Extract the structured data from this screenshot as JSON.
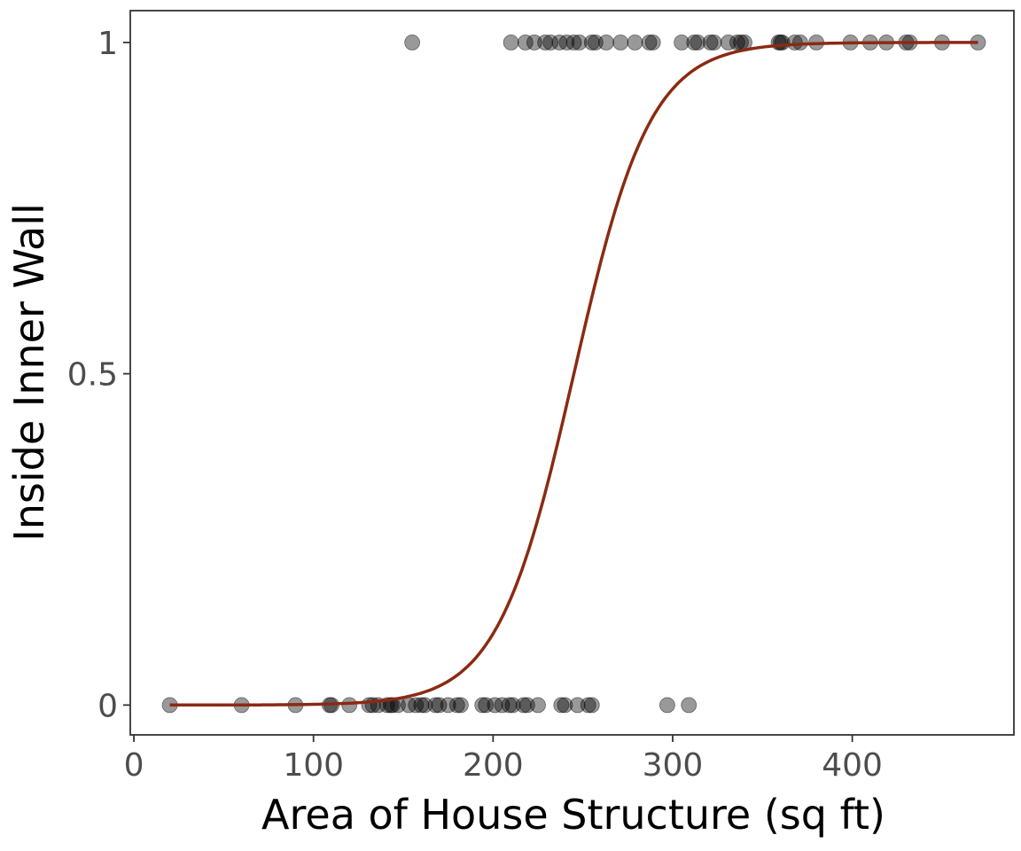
{
  "colors": {
    "background": "#ffffff",
    "panel_border": "#333333",
    "tick_mark": "#333333",
    "tick_text": "#4d4d4d",
    "axis_title": "#000000",
    "point_fill": "#000000",
    "point_fill_opacity": 0.4,
    "point_stroke": "#000000",
    "curve": "#8b2a13"
  },
  "chart_data": {
    "type": "scatter",
    "title": "",
    "xlabel": "Area of House Structure (sq ft)",
    "ylabel": "Inside Inner Wall",
    "xlim": [
      -2,
      490
    ],
    "ylim": [
      -0.045,
      1.048
    ],
    "x_ticks": [
      {
        "value": 0,
        "label": "0"
      },
      {
        "value": 100,
        "label": "100"
      },
      {
        "value": 200,
        "label": "200"
      },
      {
        "value": 300,
        "label": "300"
      },
      {
        "value": 400,
        "label": "400"
      }
    ],
    "y_ticks": [
      {
        "value": 0,
        "label": "0"
      },
      {
        "value": 0.5,
        "label": "0.5"
      },
      {
        "value": 1,
        "label": "1"
      }
    ],
    "grid": false,
    "legend": "none",
    "series": [
      {
        "y": 1,
        "x": [
          155,
          210,
          218,
          223,
          229,
          232,
          237,
          241,
          245,
          248,
          255,
          257,
          263,
          271,
          279,
          287,
          289,
          305,
          312,
          314,
          321,
          323,
          331,
          336,
          338,
          340,
          359,
          360,
          361,
          368,
          371,
          380,
          399,
          410,
          419,
          430,
          432,
          450,
          470
        ]
      },
      {
        "y": 0,
        "x": [
          20,
          60,
          90,
          109,
          110,
          120,
          131,
          133,
          136,
          141,
          143,
          144,
          147,
          153,
          157,
          160,
          162,
          168,
          170,
          175,
          180,
          182,
          194,
          196,
          201,
          205,
          209,
          211,
          217,
          219,
          225,
          238,
          240,
          247,
          253,
          255,
          297,
          309
        ]
      }
    ],
    "fit": {
      "type": "logistic",
      "x0": 245,
      "k": 0.047,
      "x_range": [
        20,
        470
      ]
    }
  }
}
